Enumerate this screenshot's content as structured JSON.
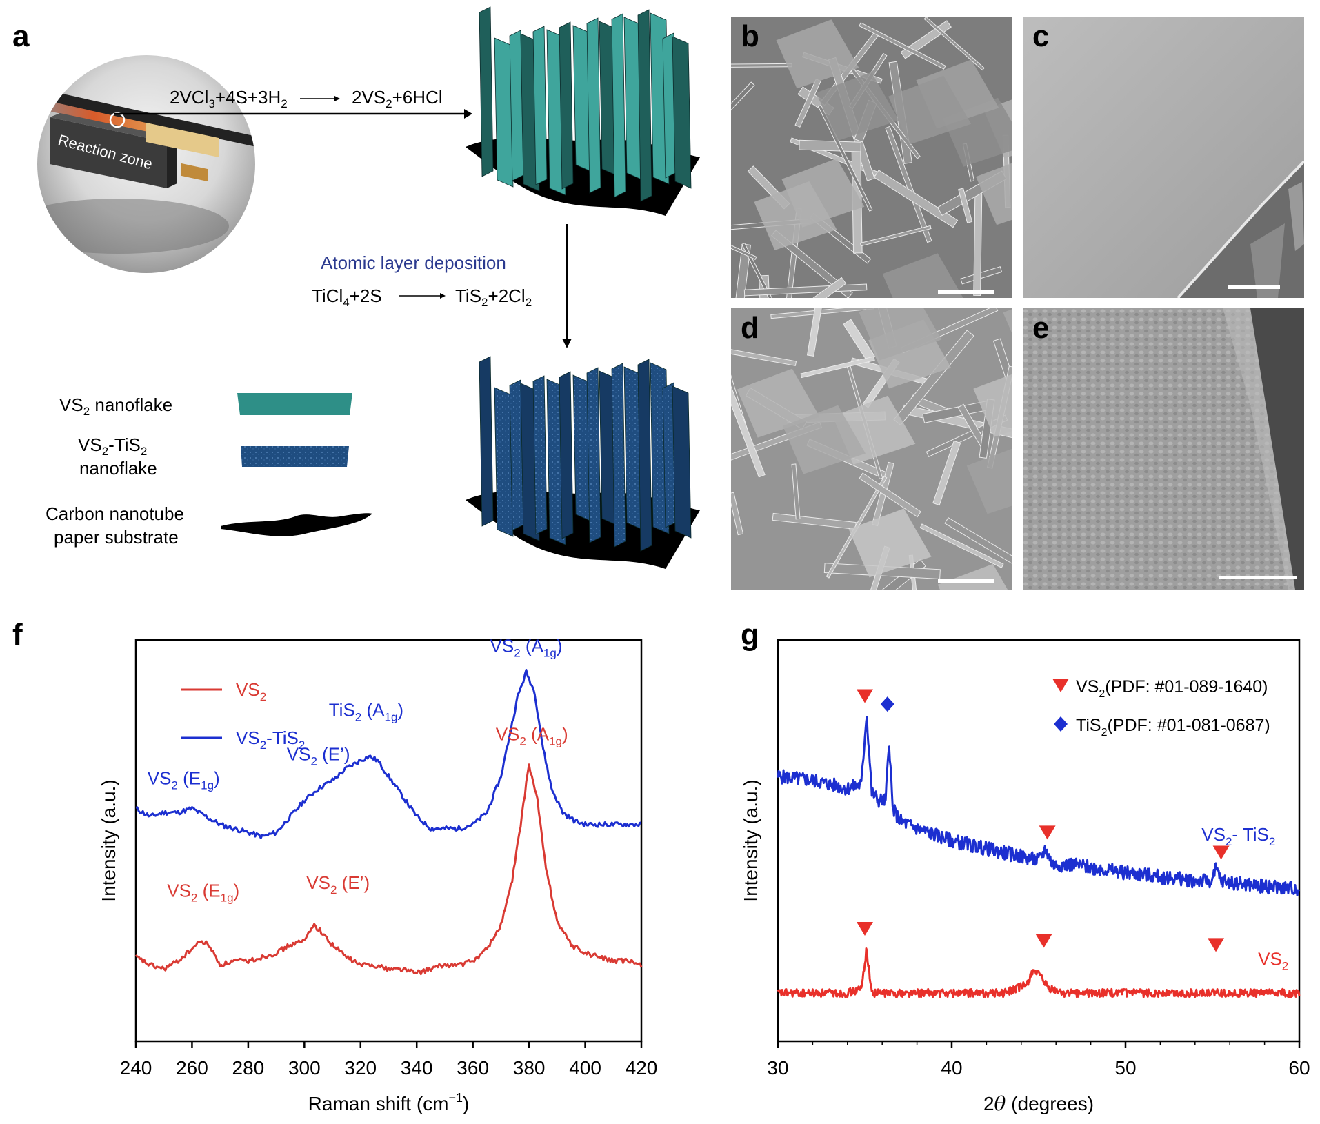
{
  "panel_a": {
    "label": "a",
    "reaction_zone_label": "Reaction zone",
    "cvd_reaction": {
      "left": [
        "2VCl",
        "3",
        "+4S+3H",
        "2"
      ],
      "right": [
        "2VS",
        "2",
        "+6HCl"
      ]
    },
    "ald_title": "Atomic layer deposition",
    "ald_reaction": {
      "left": [
        "TiCl",
        "4",
        "+2S"
      ],
      "right": [
        "TiS",
        "2",
        "+2Cl",
        "2"
      ]
    },
    "legend": {
      "vs2": [
        "VS",
        "2",
        " nanoflake"
      ],
      "vs2tis2_line1": [
        "VS",
        "2",
        "-TiS",
        "2"
      ],
      "vs2tis2_line2": "nanoflake",
      "cnt_line1": "Carbon nanotube",
      "cnt_line2": "paper substrate"
    },
    "colors": {
      "vs2": "#2e8f87",
      "vs2tis2": "#1f4d80",
      "substrate": "#000000",
      "ald_title": "#2b3a8f"
    }
  },
  "sem_panels": [
    {
      "label": "b"
    },
    {
      "label": "c"
    },
    {
      "label": "d"
    },
    {
      "label": "e"
    }
  ],
  "panel_f": {
    "label": "f",
    "chart_data": {
      "type": "line",
      "xlabel_main": "Raman shift (cm",
      "xlabel_sup": "−1",
      "xlabel_end": ")",
      "ylabel": "Intensity (a.u.)",
      "xlim": [
        240,
        420
      ],
      "xticks": [
        "240",
        "260",
        "280",
        "300",
        "320",
        "340",
        "360",
        "380",
        "400",
        "420"
      ],
      "legend": [
        {
          "name_parts": [
            "VS",
            "2"
          ],
          "color": "#d93a33"
        },
        {
          "name_parts": [
            "VS",
            "2",
            "-TiS",
            "2"
          ],
          "color": "#1c2fd0"
        }
      ],
      "series": [
        {
          "color": "#1c2fd0",
          "x": [
            240,
            245,
            250,
            255,
            260,
            265,
            270,
            275,
            280,
            285,
            290,
            295,
            300,
            305,
            310,
            315,
            320,
            323,
            326,
            330,
            335,
            340,
            345,
            350,
            355,
            360,
            365,
            370,
            373,
            376,
            379,
            382,
            385,
            388,
            392,
            396,
            400,
            405,
            410,
            415,
            420
          ],
          "y": [
            0.58,
            0.56,
            0.57,
            0.57,
            0.58,
            0.56,
            0.54,
            0.53,
            0.52,
            0.51,
            0.52,
            0.56,
            0.6,
            0.63,
            0.65,
            0.68,
            0.7,
            0.71,
            0.7,
            0.66,
            0.61,
            0.56,
            0.53,
            0.53,
            0.53,
            0.54,
            0.57,
            0.66,
            0.76,
            0.86,
            0.92,
            0.87,
            0.73,
            0.63,
            0.57,
            0.55,
            0.54,
            0.54,
            0.54,
            0.54,
            0.54
          ]
        },
        {
          "color": "#d93a33",
          "x": [
            240,
            245,
            250,
            255,
            260,
            263,
            266,
            270,
            275,
            280,
            285,
            290,
            295,
            300,
            303,
            305,
            310,
            315,
            320,
            325,
            330,
            335,
            340,
            345,
            350,
            355,
            360,
            365,
            370,
            374,
            377,
            380,
            383,
            386,
            390,
            395,
            400,
            405,
            410,
            415,
            420
          ],
          "y": [
            0.21,
            0.19,
            0.18,
            0.2,
            0.23,
            0.25,
            0.24,
            0.19,
            0.2,
            0.2,
            0.21,
            0.22,
            0.24,
            0.25,
            0.29,
            0.28,
            0.24,
            0.21,
            0.19,
            0.19,
            0.18,
            0.18,
            0.17,
            0.18,
            0.19,
            0.19,
            0.2,
            0.23,
            0.29,
            0.4,
            0.54,
            0.69,
            0.6,
            0.43,
            0.3,
            0.24,
            0.22,
            0.21,
            0.2,
            0.2,
            0.19
          ]
        }
      ],
      "annotations": [
        {
          "color": "#1c2fd0",
          "parts": [
            "VS",
            "2",
            " (A",
            "1g",
            ")"
          ]
        },
        {
          "color": "#1c2fd0",
          "parts": [
            "TiS",
            "2",
            " (A",
            "1g",
            ")"
          ]
        },
        {
          "color": "#1c2fd0",
          "parts": [
            "VS",
            "2",
            " (E’)"
          ]
        },
        {
          "color": "#1c2fd0",
          "parts": [
            "VS",
            "2",
            " (E",
            "1g",
            ")"
          ]
        },
        {
          "color": "#d93a33",
          "parts": [
            "VS",
            "2",
            " (A",
            "1g",
            ")"
          ]
        },
        {
          "color": "#d93a33",
          "parts": [
            "VS",
            "2",
            " (E",
            "1g",
            ")"
          ]
        },
        {
          "color": "#d93a33",
          "parts": [
            "VS",
            "2",
            " (E’)"
          ]
        }
      ]
    }
  },
  "panel_g": {
    "label": "g",
    "chart_data": {
      "type": "line",
      "xlabel_pre": "2",
      "xlabel_theta": "θ",
      "xlabel_post": " (degrees)",
      "ylabel": "Intensity (a.u.)",
      "xlim": [
        30,
        60
      ],
      "xticks": [
        "30",
        "40",
        "50",
        "60"
      ],
      "legend": [
        {
          "marker": "triangle",
          "color": "#e8302a",
          "parts": [
            "VS",
            "2",
            "(PDF: #01-089-1640)"
          ]
        },
        {
          "marker": "diamond",
          "color": "#1c2fd0",
          "parts": [
            "TiS",
            "2",
            "(PDF: #01-081-0687)"
          ]
        }
      ],
      "series": [
        {
          "color": "#1c2fd0",
          "label_parts": [
            "VS",
            "2",
            "- TiS",
            "2"
          ],
          "x": [
            30,
            32,
            34,
            34.8,
            35.1,
            35.4,
            35.8,
            36.2,
            36.4,
            36.6,
            37,
            38,
            40,
            42,
            44,
            45,
            45.4,
            45.8,
            47,
            50,
            52,
            54,
            55,
            55.2,
            55.5,
            57,
            60
          ],
          "y": [
            0.66,
            0.65,
            0.63,
            0.64,
            0.82,
            0.62,
            0.6,
            0.6,
            0.75,
            0.58,
            0.55,
            0.53,
            0.5,
            0.48,
            0.46,
            0.45,
            0.48,
            0.44,
            0.44,
            0.42,
            0.41,
            0.4,
            0.4,
            0.43,
            0.4,
            0.39,
            0.38
          ]
        },
        {
          "color": "#e8302a",
          "label_parts": [
            "VS",
            "2"
          ],
          "x": [
            30,
            34,
            34.8,
            35.1,
            35.4,
            36,
            40,
            43,
            44.3,
            44.7,
            45.1,
            45.6,
            46.5,
            50,
            54,
            55,
            60
          ],
          "y": [
            0.12,
            0.12,
            0.13,
            0.23,
            0.12,
            0.12,
            0.12,
            0.12,
            0.14,
            0.18,
            0.16,
            0.13,
            0.12,
            0.12,
            0.12,
            0.12,
            0.12
          ]
        }
      ],
      "markers": [
        {
          "shape": "triangle",
          "color": "#e8302a",
          "x": 35.0,
          "y": 0.86
        },
        {
          "shape": "diamond",
          "color": "#1c2fd0",
          "x": 36.3,
          "y": 0.84
        },
        {
          "shape": "triangle",
          "color": "#e8302a",
          "x": 45.5,
          "y": 0.52
        },
        {
          "shape": "triangle",
          "color": "#e8302a",
          "x": 55.5,
          "y": 0.47
        },
        {
          "shape": "triangle",
          "color": "#e8302a",
          "x": 35.0,
          "y": 0.28
        },
        {
          "shape": "triangle",
          "color": "#e8302a",
          "x": 45.3,
          "y": 0.25
        },
        {
          "shape": "triangle",
          "color": "#e8302a",
          "x": 55.2,
          "y": 0.24
        }
      ]
    }
  }
}
